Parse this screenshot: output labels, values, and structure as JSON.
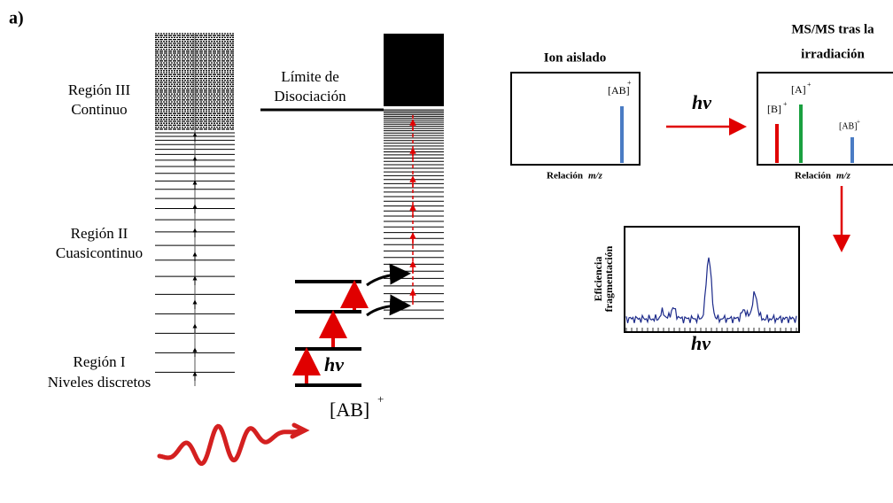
{
  "panel_label": "a)",
  "regions": [
    {
      "name": "Región III",
      "desc": "Continuo"
    },
    {
      "name": "Región II",
      "desc": "Cuasicontinuo"
    },
    {
      "name": "Región I",
      "desc": "Niveles discretos"
    }
  ],
  "dissociation_limit": [
    "Límite de",
    "Disociación"
  ],
  "ion": {
    "label": "[AB]",
    "charge": "+",
    "photon": "hv"
  },
  "isolated": {
    "title": "Ion aislado",
    "peak": "[AB]",
    "charge": "+",
    "xlabel": "Relación",
    "xlabel_italic": "m/z"
  },
  "arrow_label": "hv",
  "msms": {
    "title": [
      "MS/MS tras la",
      "irradiación"
    ],
    "peaks": [
      {
        "label": "[B]",
        "charge": "+"
      },
      {
        "label": "[A]",
        "charge": "+"
      },
      {
        "label": "[AB]",
        "charge": "+"
      }
    ],
    "xlabel": "Relación",
    "xlabel_italic": "m/z"
  },
  "efficiency": {
    "ylabel": [
      "Eficiencia",
      "fragmentación"
    ],
    "xlabel": "hv"
  }
}
